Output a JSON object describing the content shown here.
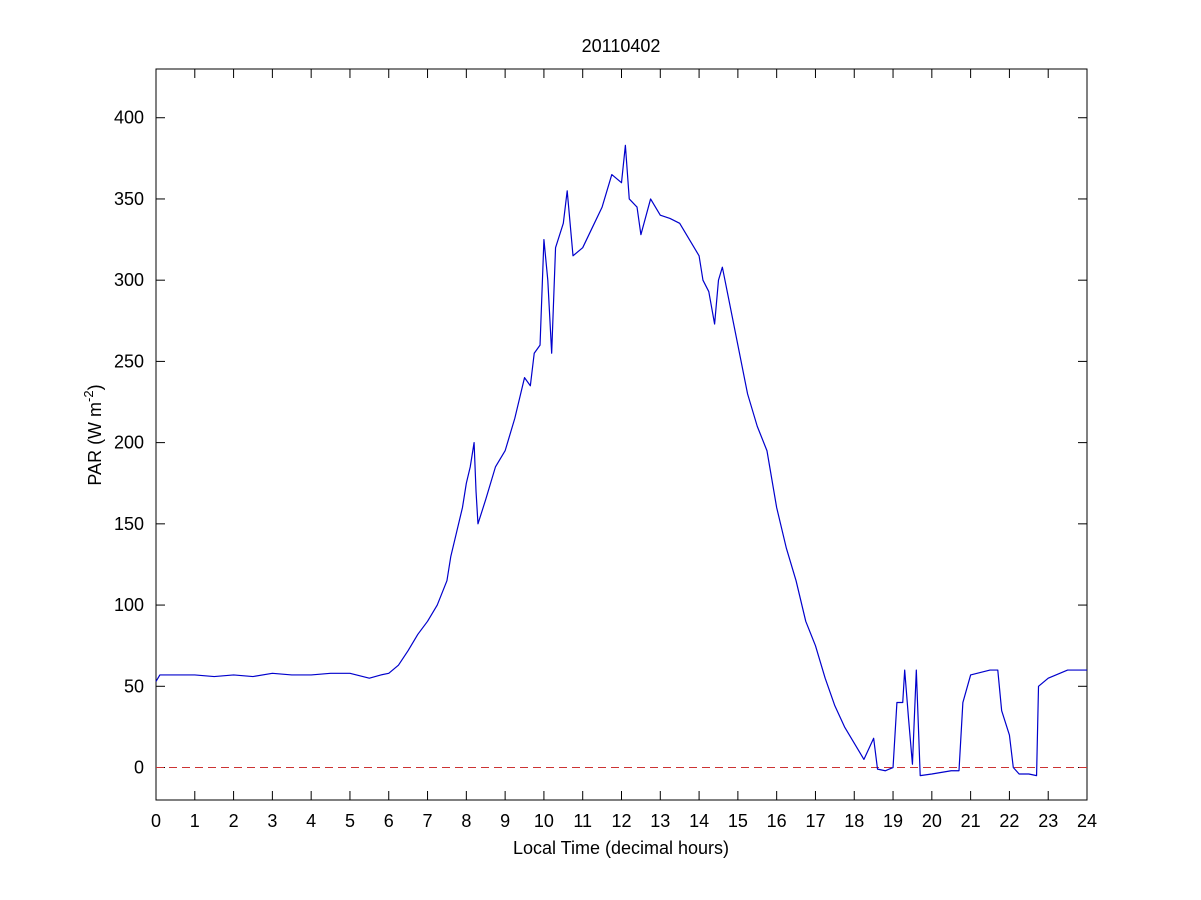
{
  "chart_data": {
    "type": "line",
    "title": "20110402",
    "xlabel": "Local Time (decimal hours)",
    "ylabel": [
      "PAR (W m",
      "-2",
      ")"
    ],
    "x": [
      0,
      0.1,
      0.5,
      1,
      1.5,
      2,
      2.5,
      3,
      3.5,
      4,
      4.5,
      5,
      5.5,
      5.8,
      6,
      6.25,
      6.5,
      6.75,
      7,
      7.25,
      7.5,
      7.6,
      7.75,
      7.9,
      8,
      8.1,
      8.2,
      8.25,
      8.3,
      8.5,
      8.75,
      9,
      9.25,
      9.5,
      9.65,
      9.75,
      9.9,
      10,
      10.1,
      10.2,
      10.3,
      10.5,
      10.6,
      10.75,
      11,
      11.2,
      11.5,
      11.75,
      12,
      12.1,
      12.2,
      12.4,
      12.5,
      12.75,
      13,
      13.25,
      13.5,
      13.75,
      14,
      14.1,
      14.25,
      14.4,
      14.5,
      14.6,
      14.75,
      15,
      15.25,
      15.5,
      15.75,
      16,
      16.25,
      16.5,
      16.75,
      17,
      17.25,
      17.5,
      17.75,
      18,
      18.25,
      18.5,
      18.6,
      18.8,
      19,
      19.1,
      19.25,
      19.3,
      19.4,
      19.5,
      19.6,
      19.7,
      20,
      20.5,
      20.7,
      20.8,
      21,
      21.5,
      21.7,
      21.8,
      22,
      22.1,
      22.25,
      22.5,
      22.7,
      22.75,
      23,
      23.5,
      24
    ],
    "series": [
      {
        "color": "#0000cc",
        "values": [
          53,
          57,
          57,
          57,
          56,
          57,
          56,
          58,
          57,
          57,
          58,
          58,
          55,
          57,
          58,
          63,
          72,
          82,
          90,
          100,
          115,
          130,
          145,
          160,
          175,
          185,
          200,
          170,
          150,
          165,
          185,
          195,
          215,
          240,
          235,
          255,
          260,
          325,
          300,
          255,
          320,
          335,
          355,
          315,
          320,
          330,
          345,
          365,
          360,
          383,
          350,
          345,
          328,
          350,
          340,
          338,
          335,
          325,
          315,
          300,
          293,
          273,
          300,
          308,
          290,
          260,
          230,
          210,
          195,
          160,
          135,
          115,
          90,
          75,
          55,
          38,
          25,
          15,
          5,
          18,
          -1,
          -2,
          0,
          40,
          40,
          60,
          30,
          2,
          60,
          -5,
          -4,
          -2,
          -2,
          40,
          57,
          60,
          60,
          35,
          20,
          0,
          -4,
          -4,
          -5,
          50,
          55,
          60,
          60
        ]
      }
    ],
    "reference_line": {
      "y": 0,
      "color": "#cc3333"
    },
    "xlim": [
      0,
      24
    ],
    "xticks": [
      0,
      1,
      2,
      3,
      4,
      5,
      6,
      7,
      8,
      9,
      10,
      11,
      12,
      13,
      14,
      15,
      16,
      17,
      18,
      19,
      20,
      21,
      22,
      23,
      24
    ],
    "ylim": [
      -20,
      430
    ],
    "yticks": [
      0,
      50,
      100,
      150,
      200,
      250,
      300,
      350,
      400
    ]
  }
}
